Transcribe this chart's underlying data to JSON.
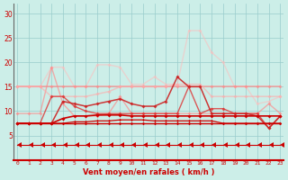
{
  "x": [
    0,
    1,
    2,
    3,
    4,
    5,
    6,
    7,
    8,
    9,
    10,
    11,
    12,
    13,
    14,
    15,
    16,
    17,
    18,
    19,
    20,
    21,
    22,
    23
  ],
  "series": [
    {
      "y": [
        7.5,
        7.5,
        7.5,
        7.5,
        7.5,
        7.5,
        7.5,
        7.5,
        7.5,
        7.5,
        7.5,
        7.5,
        7.5,
        7.5,
        7.5,
        7.5,
        7.5,
        7.5,
        7.5,
        7.5,
        7.5,
        7.5,
        7.5,
        7.5
      ],
      "color": "#cc0000",
      "lw": 1.0,
      "marker": "D",
      "ms": 1.8,
      "alpha": 1.0,
      "zorder": 5
    },
    {
      "y": [
        7.5,
        7.5,
        7.5,
        7.5,
        7.5,
        7.8,
        7.8,
        8.0,
        8.0,
        8.2,
        8.2,
        8.2,
        8.0,
        8.0,
        8.0,
        8.0,
        8.0,
        8.0,
        7.5,
        7.5,
        7.5,
        7.5,
        7.5,
        7.5
      ],
      "color": "#cc0000",
      "lw": 0.9,
      "marker": "D",
      "ms": 1.5,
      "alpha": 1.0,
      "zorder": 4
    },
    {
      "y": [
        7.5,
        7.5,
        7.5,
        7.5,
        8.5,
        9.0,
        9.0,
        9.2,
        9.2,
        9.2,
        9.0,
        9.0,
        9.0,
        9.0,
        9.0,
        9.0,
        9.0,
        9.0,
        9.0,
        9.0,
        9.0,
        9.0,
        9.0,
        9.0
      ],
      "color": "#cc0000",
      "lw": 1.2,
      "marker": "D",
      "ms": 2.0,
      "alpha": 1.0,
      "zorder": 4
    },
    {
      "y": [
        7.5,
        7.5,
        7.5,
        13.0,
        13.0,
        11.0,
        10.0,
        9.5,
        9.5,
        9.5,
        9.5,
        9.5,
        9.5,
        9.5,
        9.5,
        15.0,
        9.5,
        10.5,
        10.5,
        9.5,
        9.5,
        9.5,
        6.5,
        9.0
      ],
      "color": "#dd3333",
      "lw": 1.0,
      "marker": "D",
      "ms": 2.0,
      "alpha": 0.8,
      "zorder": 3
    },
    {
      "y": [
        7.5,
        7.5,
        7.5,
        7.5,
        12.0,
        11.5,
        11.0,
        11.5,
        12.0,
        12.5,
        11.5,
        11.0,
        11.0,
        12.0,
        17.0,
        15.0,
        15.0,
        9.5,
        9.5,
        9.5,
        9.5,
        9.0,
        6.5,
        9.0
      ],
      "color": "#cc2222",
      "lw": 1.1,
      "marker": "D",
      "ms": 2.0,
      "alpha": 0.9,
      "zorder": 3
    },
    {
      "y": [
        15.0,
        15.0,
        15.0,
        15.0,
        15.0,
        15.0,
        15.0,
        15.0,
        15.0,
        15.0,
        15.0,
        15.0,
        15.0,
        15.0,
        15.0,
        15.0,
        15.0,
        15.0,
        15.0,
        15.0,
        15.0,
        15.0,
        15.0,
        15.0
      ],
      "color": "#ff8888",
      "lw": 1.2,
      "marker": "D",
      "ms": 2.0,
      "alpha": 0.7,
      "zorder": 2
    },
    {
      "y": [
        9.5,
        9.5,
        9.5,
        19.0,
        11.5,
        9.0,
        9.0,
        9.0,
        9.5,
        13.0,
        9.5,
        9.5,
        9.5,
        9.5,
        9.5,
        9.5,
        9.5,
        9.5,
        9.5,
        9.5,
        9.5,
        9.5,
        11.5,
        9.5
      ],
      "color": "#ff8888",
      "lw": 1.0,
      "marker": "D",
      "ms": 2.0,
      "alpha": 0.65,
      "zorder": 2
    },
    {
      "y": [
        15.0,
        15.0,
        15.0,
        13.0,
        13.0,
        13.0,
        13.0,
        13.5,
        14.0,
        15.0,
        15.0,
        15.0,
        15.0,
        15.0,
        15.5,
        15.5,
        15.5,
        13.0,
        13.0,
        13.0,
        13.0,
        13.0,
        13.0,
        13.0
      ],
      "color": "#ffaaaa",
      "lw": 1.1,
      "marker": "D",
      "ms": 2.0,
      "alpha": 0.6,
      "zorder": 2
    },
    {
      "y": [
        15.0,
        15.0,
        15.0,
        19.0,
        19.0,
        15.0,
        15.0,
        19.5,
        19.5,
        19.0,
        15.5,
        15.5,
        17.0,
        15.5,
        15.5,
        26.5,
        26.5,
        22.0,
        20.0,
        15.0,
        15.0,
        11.5,
        12.0,
        13.0
      ],
      "color": "#ffbbbb",
      "lw": 1.0,
      "marker": "D",
      "ms": 2.0,
      "alpha": 0.55,
      "zorder": 1
    },
    {
      "y": [
        3.0,
        3.0,
        3.0,
        3.0,
        3.0,
        3.0,
        3.0,
        3.0,
        3.0,
        3.0,
        3.0,
        3.0,
        3.0,
        3.0,
        3.0,
        3.0,
        3.0,
        3.0,
        3.0,
        3.0,
        3.0,
        3.0,
        3.0,
        3.0
      ],
      "color": "#cc0000",
      "lw": 0.8,
      "marker": 4,
      "ms": 4.5,
      "alpha": 1.0,
      "zorder": 6
    }
  ],
  "xlabel": "Vent moyen/en rafales ( km/h )",
  "yticks": [
    5,
    10,
    15,
    20,
    25,
    30
  ],
  "xticks": [
    0,
    1,
    2,
    3,
    4,
    5,
    6,
    7,
    8,
    9,
    10,
    11,
    12,
    13,
    14,
    15,
    16,
    17,
    18,
    19,
    20,
    21,
    22,
    23
  ],
  "xlim": [
    -0.3,
    23.3
  ],
  "ylim": [
    0,
    32
  ],
  "bg_color": "#cceee8",
  "grid_color": "#99cccc",
  "xlabel_color": "#cc0000",
  "tick_color": "#cc0000",
  "grid_lw": 0.5
}
